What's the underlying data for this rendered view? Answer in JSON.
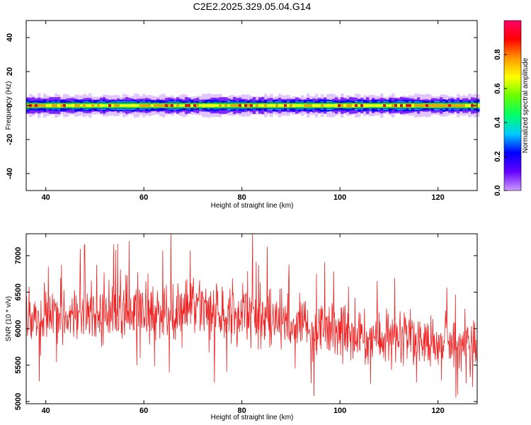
{
  "figure_title": "C2E2.2025.329.05.04.G14",
  "chart_data": [
    {
      "type": "heatmap",
      "xlabel": "Height of straight line (km)",
      "ylabel": "Frequency (Hz)",
      "xlim": [
        36,
        128
      ],
      "ylim": [
        -50,
        50
      ],
      "x_ticks": [
        40,
        60,
        80,
        100,
        120
      ],
      "x_tick_labels": [
        "40",
        "60",
        "80",
        "100",
        "120"
      ],
      "y_ticks": [
        40,
        20,
        0,
        -20,
        -40
      ],
      "y_tick_labels": [
        "40",
        "20",
        "0",
        "-20",
        "-40"
      ],
      "band_center_hz": 0,
      "band_halfwidth_hz": 6,
      "colorbar": {
        "label": "Normalized spectral amplitude",
        "range": [
          0,
          1
        ],
        "ticks": [
          0,
          0.2,
          0.4,
          0.6,
          0.8
        ],
        "tick_labels": [
          "0.0",
          "0.2",
          "0.4",
          "0.6",
          "0.8"
        ],
        "colors": [
          "#cc99ff",
          "#6600ff",
          "#0000ff",
          "#00ccff",
          "#00ff66",
          "#66ff00",
          "#ffff00",
          "#ff9900",
          "#ff0000",
          "#ff0066"
        ]
      }
    },
    {
      "type": "line",
      "xlabel": "Height of straight line (km)",
      "ylabel": "SNR (10 * v/v)",
      "xlim": [
        36,
        128
      ],
      "ylim": [
        4970,
        7300
      ],
      "x_ticks": [
        40,
        60,
        80,
        100,
        120
      ],
      "x_tick_labels": [
        "40",
        "60",
        "80",
        "100",
        "120"
      ],
      "y_ticks": [
        5000,
        5500,
        6000,
        6500,
        7000
      ],
      "y_tick_labels": [
        "5000",
        "5500",
        "6000",
        "6500",
        "7000"
      ],
      "color": "#ee2222",
      "trend": {
        "x": [
          36,
          60,
          80,
          100,
          128
        ],
        "mean": [
          6150,
          6250,
          6200,
          5950,
          5750
        ],
        "spread": [
          260,
          300,
          300,
          280,
          240
        ]
      },
      "peaks": {
        "x": [
          65.5,
          82.2,
          57.0,
          48.0,
          40.5
        ],
        "y": [
          7300,
          7300,
          7200,
          7150,
          6850
        ]
      }
    }
  ]
}
